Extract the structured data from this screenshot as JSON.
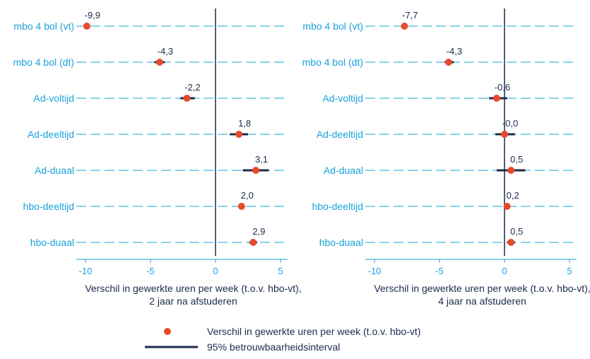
{
  "colors": {
    "accent": "#1aa3dc",
    "point": "#e8492b",
    "ci": "#1b2a4a",
    "text": "#1b2a4a"
  },
  "chart_data": [
    {
      "type": "scatter",
      "categories": [
        "mbo 4 bol (vt)",
        "mbo 4 bol (dt)",
        "Ad-voltijd",
        "Ad-deeltijd",
        "Ad-duaal",
        "hbo-deeltijd",
        "hbo-duaal"
      ],
      "values": [
        -9.9,
        -4.3,
        -2.2,
        1.8,
        3.1,
        2.0,
        2.9
      ],
      "value_labels": [
        "-9,9",
        "-4,3",
        "-2,2",
        "1,8",
        "3,1",
        "2,0",
        "2,9"
      ],
      "ci": [
        [
          -9.9,
          -9.9
        ],
        [
          -4.7,
          -3.9
        ],
        [
          -2.7,
          -1.6
        ],
        [
          1.1,
          2.5
        ],
        [
          2.1,
          4.1
        ],
        [
          2.0,
          2.0
        ],
        [
          2.6,
          3.2
        ]
      ],
      "xlim": [
        -11,
        5.3
      ],
      "xticks": [
        -10,
        -5,
        0,
        5
      ],
      "xtick_labels": [
        "-10",
        "-5",
        "0",
        "5"
      ],
      "xlabel_line1": "Verschil in gewerkte uren per week (t.o.v. hbo-vt),",
      "xlabel_line2": "2 jaar na afstuderen"
    },
    {
      "type": "scatter",
      "categories": [
        "mbo 4 bol (vt)",
        "mbo 4 bol (dt)",
        "Ad-voltijd",
        "Ad-deeltijd",
        "Ad-duaal",
        "hbo-deeltijd",
        "hbo-duaal"
      ],
      "values": [
        -7.7,
        -4.3,
        -0.6,
        0.0,
        0.5,
        0.2,
        0.5
      ],
      "value_labels": [
        "-7,7",
        "-4,3",
        "-0,6",
        "-0,0",
        "0,5",
        "0,2",
        "0,5"
      ],
      "ci": [
        [
          -7.7,
          -7.7
        ],
        [
          -4.6,
          -3.9
        ],
        [
          -1.2,
          0.2
        ],
        [
          -0.7,
          0.8
        ],
        [
          -0.6,
          1.6
        ],
        [
          0.1,
          0.3
        ],
        [
          0.2,
          0.8
        ]
      ],
      "xlim": [
        -11,
        5.3
      ],
      "xticks": [
        -10,
        -5,
        0,
        5
      ],
      "xtick_labels": [
        "-10",
        "-5",
        "0",
        "5"
      ],
      "xlabel_line1": "Verschil in gewerkte uren per week (t.o.v. hbo-vt),",
      "xlabel_line2": "4 jaar na afstuderen"
    }
  ],
  "legend": {
    "point_label": "Verschil in gewerkte uren per week (t.o.v. hbo-vt)",
    "ci_label": "95% betrouwbaarheidsinterval"
  }
}
